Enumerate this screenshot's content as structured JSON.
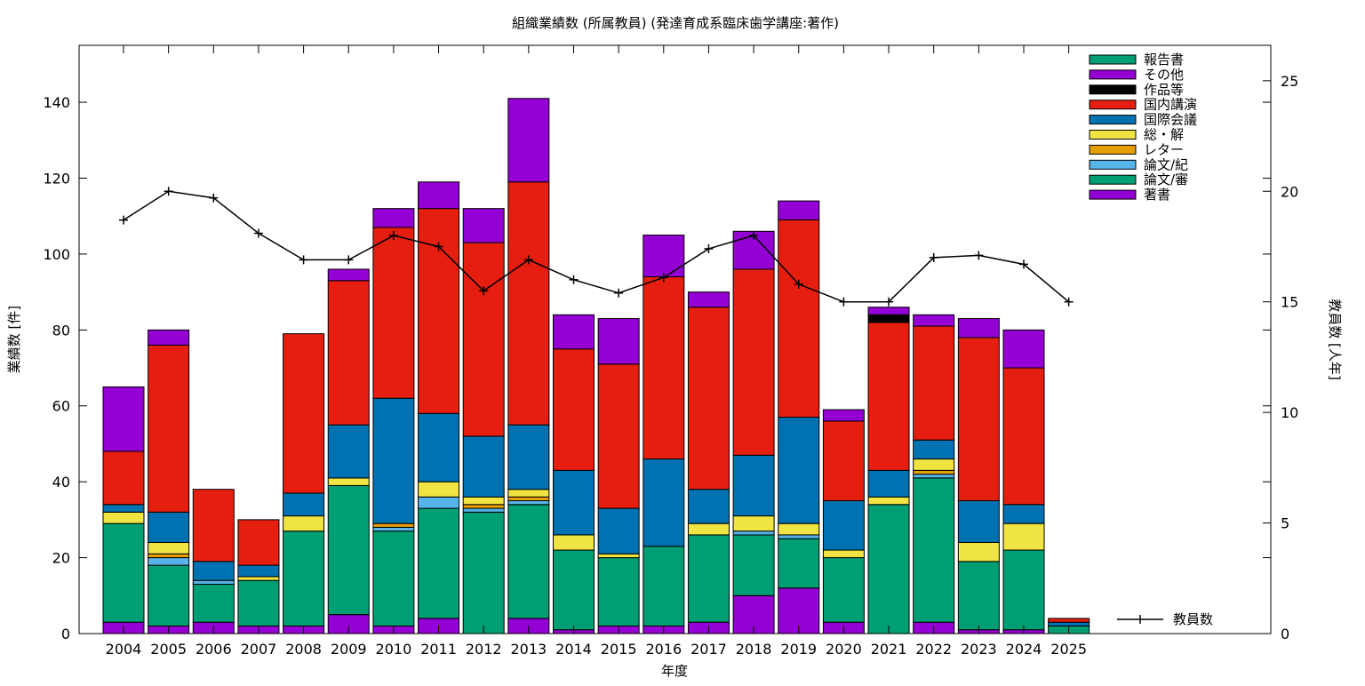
{
  "chart_data": {
    "type": "bar",
    "stacked": true,
    "title": "組織業績数 (所属教員) (発達育成系臨床歯学講座:著作)",
    "xlabel": "年度",
    "ylabel": "業績数 [件]",
    "y2label": "教員数 [人年]",
    "ylim": [
      0,
      155
    ],
    "y2lim": [
      0,
      26.6
    ],
    "yticks": [
      0,
      20,
      40,
      60,
      80,
      100,
      120,
      140
    ],
    "y2ticks": [
      0,
      5,
      10,
      15,
      20,
      25
    ],
    "grid": false,
    "legend_position": "top-right",
    "categories": [
      "2004",
      "2005",
      "2006",
      "2007",
      "2008",
      "2009",
      "2010",
      "2011",
      "2012",
      "2013",
      "2014",
      "2015",
      "2016",
      "2017",
      "2018",
      "2019",
      "2020",
      "2021",
      "2022",
      "2023",
      "2024",
      "2025"
    ],
    "series": [
      {
        "name": "著書",
        "color": "#9400d3",
        "values": [
          3,
          2,
          3,
          2,
          2,
          5,
          2,
          4,
          0,
          4,
          1,
          2,
          2,
          3,
          10,
          12,
          3,
          0,
          3,
          1,
          1,
          0
        ]
      },
      {
        "name": "論文/審",
        "color": "#009e73",
        "values": [
          26,
          16,
          10,
          12,
          25,
          34,
          25,
          29,
          32,
          30,
          21,
          18,
          21,
          23,
          16,
          13,
          17,
          34,
          38,
          18,
          21,
          2
        ]
      },
      {
        "name": "論文/紀",
        "color": "#56b4e9",
        "values": [
          0,
          2,
          1,
          0,
          0,
          0,
          1,
          3,
          1,
          1,
          0,
          0,
          0,
          0,
          1,
          1,
          0,
          0,
          1,
          0,
          0,
          0
        ]
      },
      {
        "name": "レター",
        "color": "#e69f00",
        "values": [
          0,
          1,
          0,
          0,
          0,
          0,
          1,
          0,
          1,
          1,
          0,
          0,
          0,
          0,
          0,
          0,
          0,
          0,
          1,
          0,
          0,
          0
        ]
      },
      {
        "name": "総・解",
        "color": "#f0e442",
        "values": [
          3,
          3,
          0,
          1,
          4,
          2,
          0,
          4,
          2,
          2,
          4,
          1,
          0,
          3,
          4,
          3,
          2,
          2,
          3,
          5,
          7,
          0
        ]
      },
      {
        "name": "国際会議",
        "color": "#0072b2",
        "values": [
          2,
          8,
          5,
          3,
          6,
          14,
          33,
          18,
          16,
          17,
          17,
          12,
          23,
          9,
          16,
          28,
          13,
          7,
          5,
          11,
          5,
          1
        ]
      },
      {
        "name": "国内講演",
        "color": "#e51e10",
        "values": [
          14,
          44,
          19,
          12,
          42,
          38,
          45,
          54,
          51,
          64,
          32,
          38,
          48,
          48,
          49,
          52,
          21,
          39,
          30,
          43,
          36,
          1
        ]
      },
      {
        "name": "作品等",
        "color": "#000000",
        "values": [
          0,
          0,
          0,
          0,
          0,
          0,
          0,
          0,
          0,
          0,
          0,
          0,
          0,
          0,
          0,
          0,
          0,
          2,
          0,
          0,
          0,
          0
        ]
      },
      {
        "name": "その他",
        "color": "#9400d3",
        "values": [
          17,
          4,
          0,
          0,
          0,
          3,
          5,
          7,
          9,
          22,
          9,
          12,
          11,
          4,
          10,
          5,
          3,
          2,
          3,
          5,
          10,
          0
        ]
      },
      {
        "name": "報告書",
        "color": "#009e73",
        "values": [
          0,
          0,
          0,
          0,
          0,
          0,
          0,
          0,
          0,
          0,
          0,
          0,
          0,
          0,
          0,
          0,
          0,
          0,
          0,
          0,
          0,
          0
        ]
      }
    ],
    "line_series": {
      "name": "教員数",
      "axis": "y2",
      "color": "#000000",
      "values": [
        18.7,
        20.0,
        19.7,
        18.1,
        16.9,
        16.9,
        18.0,
        17.5,
        15.5,
        16.9,
        16.0,
        15.4,
        16.1,
        17.4,
        18.0,
        15.8,
        15.0,
        15.0,
        17.0,
        17.1,
        16.7,
        15.0
      ]
    }
  }
}
